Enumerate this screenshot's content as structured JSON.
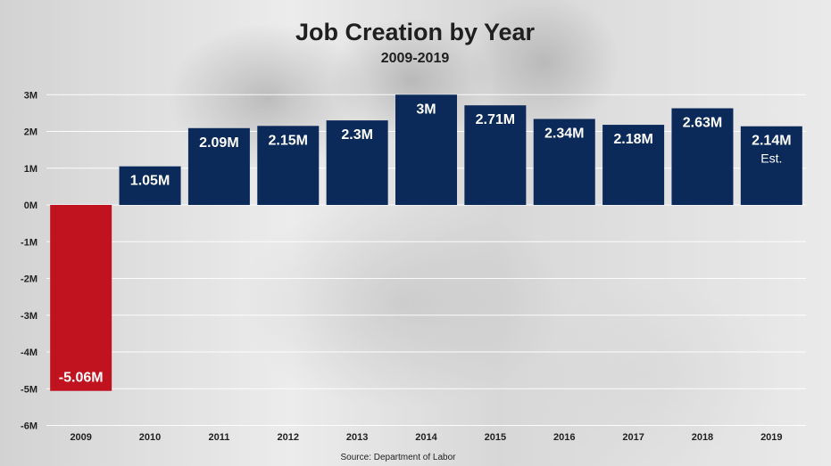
{
  "chart_data": {
    "type": "bar",
    "title": "Job Creation by Year",
    "subtitle": "2009-2019",
    "source": "Source: Department of Labor",
    "categories": [
      "2009",
      "2010",
      "2011",
      "2012",
      "2013",
      "2014",
      "2015",
      "2016",
      "2017",
      "2018",
      "2019"
    ],
    "values": [
      -5.06,
      1.05,
      2.09,
      2.15,
      2.3,
      3.0,
      2.71,
      2.34,
      2.18,
      2.63,
      2.14
    ],
    "labels": [
      "-5.06M",
      "1.05M",
      "2.09M",
      "2.15M",
      "2.3M",
      "3M",
      "2.71M",
      "2.34M",
      "2.18M",
      "2.63M",
      "2.14M"
    ],
    "notes": [
      "",
      "",
      "",
      "",
      "",
      "",
      "",
      "",
      "",
      "",
      "Est."
    ],
    "yticks": [
      3,
      2,
      1,
      0,
      -1,
      -2,
      -3,
      -4,
      -5,
      -6
    ],
    "ytick_labels": [
      "3M",
      "2M",
      "1M",
      "0M",
      "-1M",
      "-2M",
      "-3M",
      "-4M",
      "-5M",
      "-6M"
    ],
    "ylim": [
      -6,
      3.3
    ],
    "grid": true,
    "colors": {
      "positive": "#0b2a59",
      "negative": "#c1121f",
      "grid": "#ffffff"
    }
  }
}
